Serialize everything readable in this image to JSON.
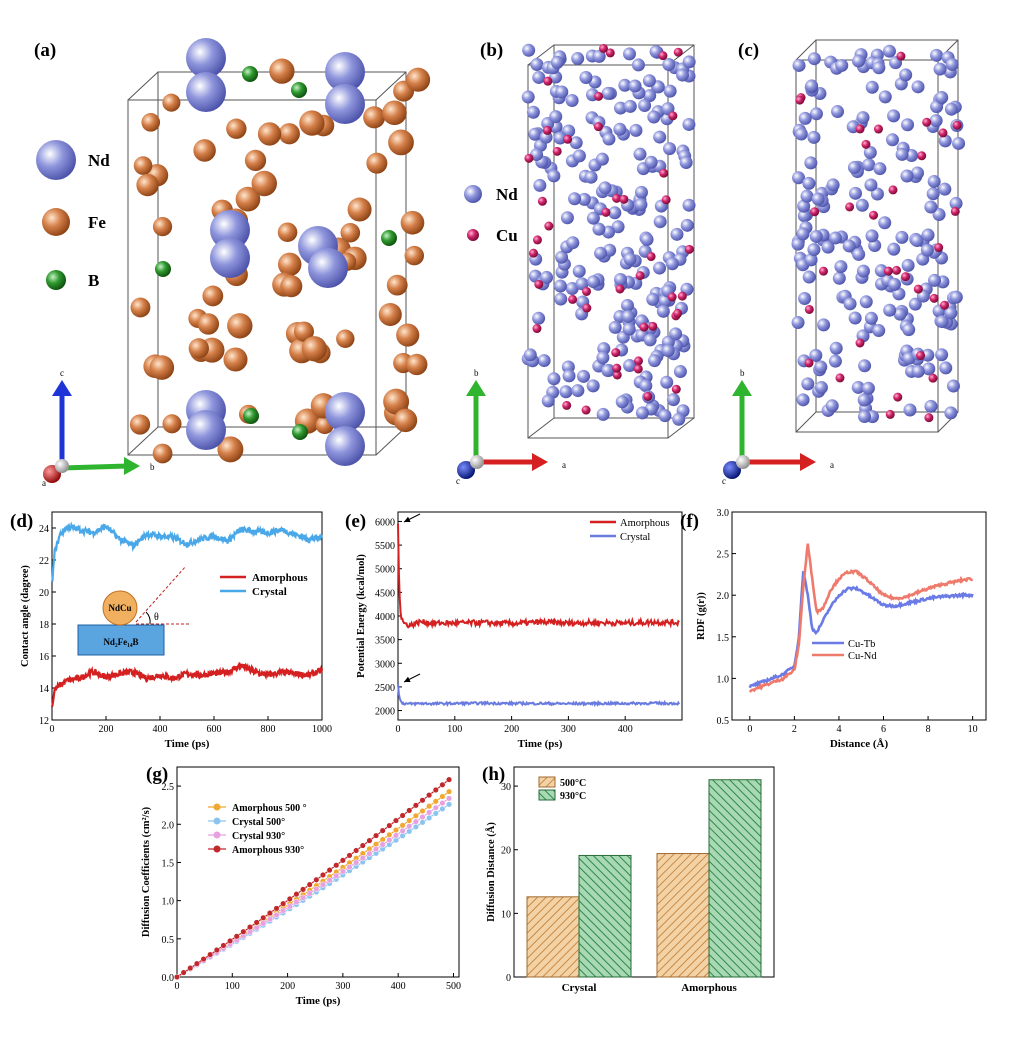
{
  "colors": {
    "nd": "#8f96dc",
    "fe": "#d5804a",
    "b": "#2f9a2f",
    "cu": "#d0256c",
    "amorphous_red": "#d42020",
    "crystal_blue": "#4aa8e8",
    "crystal_energy_blue": "#6a7be0",
    "cu_tb": "#6a7be6",
    "cu_nd": "#ee7a6c",
    "axis_c": "#1f34d6",
    "axis_b_green": "#2fb42f",
    "axis_a_red": "#d42020",
    "bar_500": "#e8b57a",
    "bar_930": "#3f9a58"
  },
  "panel_labels": {
    "a": "(a)",
    "b": "(b)",
    "c": "(c)",
    "d": "(d)",
    "e": "(e)",
    "f": "(f)",
    "g": "(g)",
    "h": "(h)"
  },
  "panel_a": {
    "legend": [
      {
        "label": "Nd",
        "color_key": "nd"
      },
      {
        "label": "Fe",
        "color_key": "fe"
      },
      {
        "label": "B",
        "color_key": "b"
      }
    ],
    "axes": {
      "c": "c",
      "b": "b",
      "a": "a"
    }
  },
  "panel_bc": {
    "legend": [
      {
        "label": "Nd",
        "color_key": "nd"
      },
      {
        "label": "Cu",
        "color_key": "cu"
      }
    ],
    "axes": {
      "b": "b",
      "a": "a",
      "c": "c"
    }
  },
  "chart_data": [
    {
      "panel": "d",
      "type": "line",
      "title": "",
      "xlabel": "Time (ps)",
      "ylabel": "Contact angle (dagree)",
      "xlim": [
        0,
        1000
      ],
      "ylim": [
        12,
        25
      ],
      "xticks": [
        0,
        200,
        400,
        600,
        800,
        1000
      ],
      "yticks": [
        12,
        14,
        16,
        18,
        20,
        22,
        24
      ],
      "legend": "center-right",
      "inset": {
        "droplet": "NdCu",
        "substrate": "Nd₂Fe₁₄B",
        "angle": "θ"
      },
      "series": [
        {
          "name": "Amorphous",
          "color_key": "amorphous_red",
          "x": [
            0,
            10,
            30,
            60,
            100,
            150,
            200,
            250,
            300,
            350,
            400,
            450,
            500,
            550,
            600,
            650,
            700,
            750,
            800,
            850,
            900,
            950,
            1000
          ],
          "y": [
            12.8,
            13.9,
            14.2,
            14.5,
            14.6,
            15.0,
            14.7,
            14.9,
            15.0,
            14.6,
            14.8,
            14.6,
            14.9,
            14.8,
            14.9,
            15.0,
            15.4,
            15.0,
            14.8,
            15.0,
            14.9,
            14.8,
            15.1
          ]
        },
        {
          "name": "Crystal",
          "color_key": "crystal_blue",
          "x": [
            0,
            10,
            30,
            60,
            100,
            150,
            200,
            250,
            300,
            350,
            400,
            450,
            500,
            550,
            600,
            650,
            700,
            750,
            800,
            850,
            900,
            950,
            1000
          ],
          "y": [
            20.5,
            22.5,
            23.6,
            24.1,
            23.9,
            23.7,
            24.1,
            23.3,
            22.9,
            23.6,
            23.5,
            23.4,
            23.0,
            23.3,
            23.5,
            23.2,
            23.9,
            23.8,
            23.7,
            23.9,
            23.6,
            23.3,
            23.4
          ]
        }
      ]
    },
    {
      "panel": "e",
      "type": "line",
      "title": "",
      "xlabel": "Time (ps)",
      "ylabel": "Potential Energy (kcal/mol)",
      "xlim": [
        0,
        500
      ],
      "ylim": [
        1800,
        6200
      ],
      "xticks": [
        0,
        100,
        200,
        300,
        400
      ],
      "yticks": [
        2000,
        2500,
        3000,
        3500,
        4000,
        4500,
        5000,
        5500,
        6000
      ],
      "legend": "top-right",
      "series": [
        {
          "name": "Amorphous",
          "color_key": "amorphous_red",
          "x": [
            0,
            2,
            5,
            10,
            20,
            40,
            60,
            100,
            150,
            200,
            250,
            300,
            350,
            400,
            450,
            495
          ],
          "y": [
            6000,
            4600,
            4000,
            3850,
            3800,
            3880,
            3850,
            3850,
            3860,
            3840,
            3870,
            3850,
            3860,
            3850,
            3870,
            3860
          ]
        },
        {
          "name": "Crystal",
          "color_key": "crystal_energy_blue",
          "x": [
            0,
            2,
            5,
            10,
            20,
            40,
            60,
            100,
            150,
            200,
            250,
            300,
            350,
            400,
            450,
            495
          ],
          "y": [
            2580,
            2300,
            2180,
            2150,
            2140,
            2150,
            2145,
            2150,
            2155,
            2150,
            2150,
            2145,
            2150,
            2150,
            2155,
            2150
          ]
        }
      ]
    },
    {
      "panel": "f",
      "type": "line",
      "title": "",
      "xlabel": "Distance (Å)",
      "ylabel": "RDF (g(r))",
      "xlim": [
        -0.8,
        10.6
      ],
      "ylim": [
        0.5,
        3.0
      ],
      "xticks": [
        0,
        2,
        4,
        6,
        8,
        10
      ],
      "yticks": [
        0.5,
        1.0,
        1.5,
        2.0,
        2.5,
        3.0
      ],
      "legend": "bottom-center",
      "series": [
        {
          "name": "Cu-Tb",
          "color_key": "cu_tb",
          "x": [
            0,
            0.5,
            1.0,
            1.5,
            2.0,
            2.2,
            2.4,
            2.6,
            2.8,
            3.0,
            3.3,
            3.6,
            4.0,
            4.4,
            4.8,
            5.2,
            5.6,
            6.0,
            6.5,
            7.0,
            7.5,
            8.0,
            8.5,
            9.0,
            9.5,
            10.0
          ],
          "y": [
            0.9,
            0.95,
            1.0,
            1.05,
            1.15,
            1.5,
            2.3,
            2.0,
            1.6,
            1.55,
            1.7,
            1.85,
            2.0,
            2.08,
            2.08,
            2.02,
            1.95,
            1.88,
            1.87,
            1.9,
            1.93,
            1.96,
            1.98,
            1.99,
            2.0,
            2.0
          ]
        },
        {
          "name": "Cu-Nd",
          "color_key": "cu_nd",
          "x": [
            0,
            0.5,
            1.0,
            1.5,
            2.0,
            2.2,
            2.4,
            2.6,
            2.8,
            3.0,
            3.3,
            3.6,
            4.0,
            4.4,
            4.8,
            5.2,
            5.6,
            6.0,
            6.5,
            7.0,
            7.5,
            8.0,
            8.5,
            9.0,
            9.5,
            10.0
          ],
          "y": [
            0.85,
            0.9,
            0.95,
            1.0,
            1.1,
            1.4,
            2.1,
            2.62,
            2.2,
            1.8,
            1.85,
            2.05,
            2.2,
            2.28,
            2.28,
            2.2,
            2.1,
            2.0,
            1.96,
            1.98,
            2.03,
            2.08,
            2.12,
            2.15,
            2.18,
            2.2
          ]
        }
      ]
    },
    {
      "panel": "g",
      "type": "line",
      "title": "",
      "xlabel": "Time (ps)",
      "ylabel": "Diffusion Coefficients (cm²/s)",
      "xlim": [
        0,
        510
      ],
      "ylim": [
        0,
        2.75
      ],
      "xticks": [
        0,
        100,
        200,
        300,
        400,
        500
      ],
      "yticks": [
        0.0,
        0.5,
        1.0,
        1.5,
        2.0,
        2.5
      ],
      "legend": "top-left",
      "series": [
        {
          "name": "Amorphous 500 °",
          "color_key": "amorphous_500",
          "slope_at_500": 2.47
        },
        {
          "name": "Crystal 500°",
          "color_key": "crystal_500",
          "slope_at_500": 2.3
        },
        {
          "name": "Crystal 930°",
          "color_key": "crystal_930",
          "slope_at_500": 2.38
        },
        {
          "name": "Amorphous 930°",
          "color_key": "amorphous_930",
          "slope_at_500": 2.63
        }
      ],
      "marker_colors": {
        "amorphous_500": "#f0a830",
        "crystal_500": "#8cc4f0",
        "crystal_930": "#e7a0e0",
        "amorphous_930": "#c0282c"
      }
    },
    {
      "panel": "h",
      "type": "bar",
      "title": "",
      "xlabel": "",
      "ylabel": "Diffusion Distance (Å)",
      "ylim": [
        0,
        33
      ],
      "yticks": [
        0,
        10,
        20,
        30
      ],
      "categories": [
        "Crystal",
        "Amorphous"
      ],
      "legend": "top-left",
      "series": [
        {
          "name": "500°C",
          "color_key": "bar_500",
          "values": [
            12.6,
            19.4
          ]
        },
        {
          "name": "930°C",
          "color_key": "bar_930",
          "values": [
            19.1,
            31.0
          ]
        }
      ]
    }
  ]
}
